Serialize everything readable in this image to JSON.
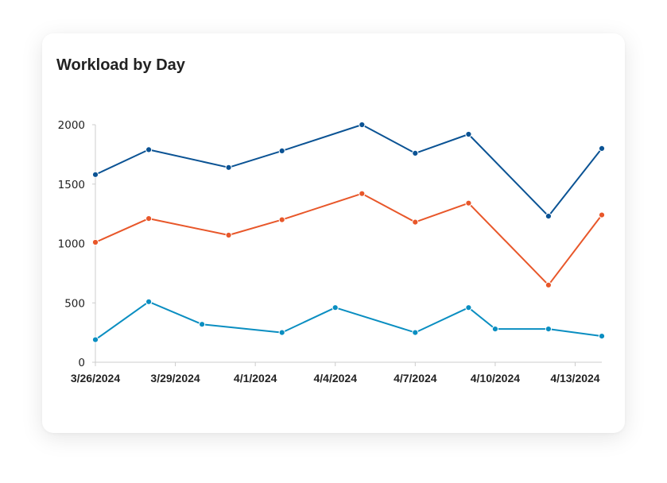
{
  "chart_data": {
    "type": "line",
    "title": "Workload by Day",
    "xlabel": "",
    "ylabel": "",
    "ylim": [
      0,
      2000
    ],
    "yticks": [
      0,
      500,
      1000,
      1500,
      2000
    ],
    "xlim": [
      "2024-03-26",
      "2024-04-14"
    ],
    "xticks": [
      "3/26/2024",
      "3/29/2024",
      "4/1/2024",
      "4/4/2024",
      "4/7/2024",
      "4/10/2024",
      "4/13/2024"
    ],
    "grid": false,
    "legend": "none",
    "series": [
      {
        "color": "#0b5394",
        "points": [
          {
            "x": "2024-03-26",
            "y": 1580
          },
          {
            "x": "2024-03-28",
            "y": 1790
          },
          {
            "x": "2024-03-31",
            "y": 1640
          },
          {
            "x": "2024-04-02",
            "y": 1780
          },
          {
            "x": "2024-04-05",
            "y": 2000
          },
          {
            "x": "2024-04-07",
            "y": 1760
          },
          {
            "x": "2024-04-09",
            "y": 1920
          },
          {
            "x": "2024-04-12",
            "y": 1230
          },
          {
            "x": "2024-04-14",
            "y": 1800
          }
        ]
      },
      {
        "color": "#e8572a",
        "points": [
          {
            "x": "2024-03-26",
            "y": 1010
          },
          {
            "x": "2024-03-28",
            "y": 1210
          },
          {
            "x": "2024-03-31",
            "y": 1070
          },
          {
            "x": "2024-04-02",
            "y": 1200
          },
          {
            "x": "2024-04-05",
            "y": 1420
          },
          {
            "x": "2024-04-07",
            "y": 1180
          },
          {
            "x": "2024-04-09",
            "y": 1340
          },
          {
            "x": "2024-04-12",
            "y": 650
          },
          {
            "x": "2024-04-14",
            "y": 1240
          }
        ]
      },
      {
        "color": "#0a8ec1",
        "points": [
          {
            "x": "2024-03-26",
            "y": 190
          },
          {
            "x": "2024-03-28",
            "y": 510
          },
          {
            "x": "2024-03-30",
            "y": 320
          },
          {
            "x": "2024-04-02",
            "y": 250
          },
          {
            "x": "2024-04-04",
            "y": 460
          },
          {
            "x": "2024-04-07",
            "y": 250
          },
          {
            "x": "2024-04-09",
            "y": 460
          },
          {
            "x": "2024-04-10",
            "y": 280
          },
          {
            "x": "2024-04-12",
            "y": 280
          },
          {
            "x": "2024-04-14",
            "y": 220
          }
        ]
      }
    ]
  }
}
